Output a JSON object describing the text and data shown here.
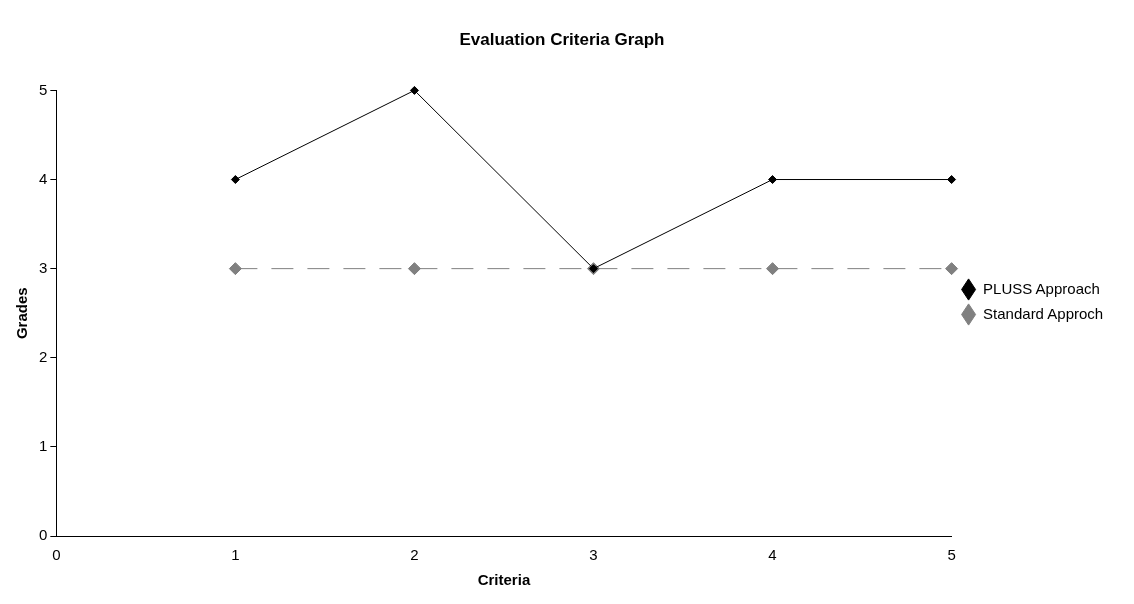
{
  "chart_data": {
    "type": "line",
    "title": "Evaluation Criteria Graph",
    "xlabel": "Criteria",
    "ylabel": "Grades",
    "x": [
      1,
      2,
      3,
      4,
      5
    ],
    "series": [
      {
        "name": "PLUSS Approach",
        "color": "#000000",
        "values": [
          4,
          5,
          3,
          4,
          4
        ],
        "line_style": "solid"
      },
      {
        "name": "Standard Approch",
        "color": "#808080",
        "values": [
          3,
          3,
          3,
          3,
          3
        ],
        "line_style": "dashed"
      }
    ],
    "xlim": [
      0,
      5
    ],
    "xticks": [
      0,
      1,
      2,
      3,
      4,
      5
    ],
    "ylim": [
      0,
      5
    ],
    "yticks": [
      0,
      1,
      2,
      3,
      4,
      5
    ],
    "grid": false,
    "legend": "right",
    "marker": "diamond"
  }
}
